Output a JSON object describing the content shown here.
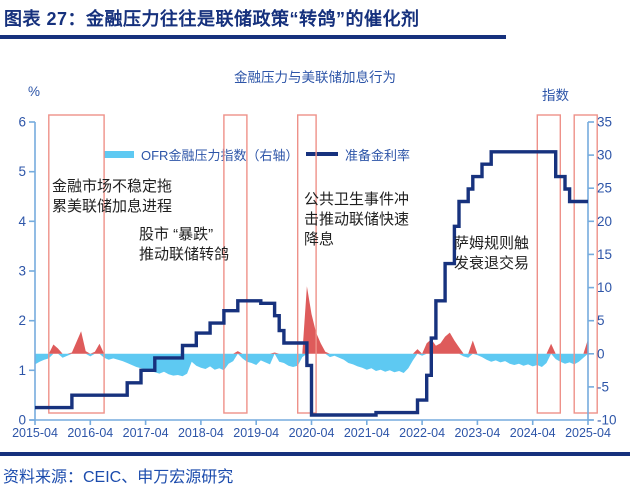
{
  "header": {
    "title": "图表 27：金融压力往往是联储政策“转鸽”的催化剂"
  },
  "footer": {
    "source": "资料来源：CEIC、申万宏源研究"
  },
  "chart_data": {
    "type": "line",
    "title": "金融压力与美联储加息行为",
    "left_axis": {
      "label": "%",
      "min": 0,
      "max": 6,
      "ticks": [
        0,
        1,
        2,
        3,
        4,
        5,
        6
      ]
    },
    "right_axis": {
      "label": "指数",
      "min": -10,
      "max": 35,
      "ticks": [
        -10,
        -5,
        0,
        5,
        10,
        15,
        20,
        25,
        30,
        35
      ]
    },
    "x_axis": {
      "ticks": [
        "2015-04",
        "2016-04",
        "2017-04",
        "2018-04",
        "2019-04",
        "2020-04",
        "2021-04",
        "2022-04",
        "2023-04",
        "2024-04",
        "2025-04"
      ]
    },
    "legend": [
      {
        "label": "OFR金融压力指数（右轴）",
        "color": "#5ec9f2"
      },
      {
        "label": "准备金利率",
        "color": "#17327e"
      }
    ],
    "colors": {
      "axis_line": "#76acde",
      "tick_text": "#2d55a8",
      "event_box_border": "#ee9189",
      "stress_positive": "#de5b5b",
      "stress_negative": "#5ec9f2",
      "rate_line": "#17327e"
    },
    "series": [
      {
        "name": "OFR金融压力指数（右轴）",
        "axis": "right",
        "type": "area",
        "positive_color": "#de5b5b",
        "negative_color": "#5ec9f2",
        "start": "2015-04",
        "interval": "monthly",
        "values": [
          -1.6,
          -1.2,
          -0.9,
          -0.7,
          1.4,
          0.8,
          -0.6,
          -0.3,
          0.2,
          1.8,
          3.4,
          0.4,
          -0.4,
          0.3,
          1.5,
          -0.6,
          -0.9,
          -0.7,
          -0.9,
          -1.1,
          -1.4,
          -1.7,
          -2.0,
          -2.2,
          -2.4,
          -2.6,
          -2.8,
          -3.0,
          -2.7,
          -3.1,
          -3.3,
          -3.2,
          -3.4,
          -3.0,
          -1.2,
          -1.8,
          -2.1,
          -2.3,
          -1.9,
          -2.4,
          -2.2,
          -2.5,
          -1.5,
          -1.1,
          0.4,
          -0.7,
          -1.2,
          -1.4,
          -1.7,
          -1.0,
          -1.3,
          -1.6,
          0.2,
          -1.2,
          -1.4,
          -1.8,
          -2.0,
          -1.8,
          -0.5,
          10.2,
          6.0,
          3.2,
          1.6,
          0.3,
          -0.5,
          -0.3,
          -0.6,
          -0.9,
          -1.4,
          -1.6,
          -1.9,
          -2.1,
          -2.4,
          -2.2,
          -2.6,
          -2.4,
          -2.7,
          -2.5,
          -2.8,
          -2.6,
          -2.9,
          -2.2,
          -1.0,
          0.7,
          -0.3,
          1.6,
          2.2,
          1.2,
          1.6,
          2.6,
          3.2,
          2.0,
          1.0,
          -0.4,
          -0.6,
          2.0,
          -0.2,
          -0.5,
          -0.9,
          -1.2,
          -1.0,
          -1.3,
          -1.1,
          -1.5,
          -1.7,
          -1.5,
          -1.8,
          -1.6,
          -1.9,
          -1.7,
          -2.0,
          -1.4,
          1.5,
          -0.8,
          -1.2,
          -1.5,
          -1.3,
          -1.6,
          -1.2,
          -0.6,
          2.2
        ]
      },
      {
        "name": "准备金利率",
        "axis": "left",
        "type": "step",
        "color": "#17327e",
        "points": [
          [
            "2015-04",
            0.25
          ],
          [
            "2015-12",
            0.5
          ],
          [
            "2016-12",
            0.75
          ],
          [
            "2017-03",
            1.0
          ],
          [
            "2017-06",
            1.25
          ],
          [
            "2017-12",
            1.5
          ],
          [
            "2018-03",
            1.75
          ],
          [
            "2018-06",
            1.95
          ],
          [
            "2018-09",
            2.2
          ],
          [
            "2018-12",
            2.4
          ],
          [
            "2019-05",
            2.35
          ],
          [
            "2019-08",
            2.1
          ],
          [
            "2019-09",
            1.8
          ],
          [
            "2019-10",
            1.55
          ],
          [
            "2020-03",
            1.1
          ],
          [
            "2020-04",
            0.1
          ],
          [
            "2021-06",
            0.15
          ],
          [
            "2022-03",
            0.4
          ],
          [
            "2022-05",
            0.9
          ],
          [
            "2022-06",
            1.65
          ],
          [
            "2022-07",
            2.4
          ],
          [
            "2022-09",
            3.15
          ],
          [
            "2022-11",
            3.9
          ],
          [
            "2022-12",
            4.4
          ],
          [
            "2023-02",
            4.65
          ],
          [
            "2023-03",
            4.9
          ],
          [
            "2023-05",
            5.15
          ],
          [
            "2023-07",
            5.4
          ],
          [
            "2024-09",
            4.9
          ],
          [
            "2024-11",
            4.65
          ],
          [
            "2024-12",
            4.4
          ]
        ]
      }
    ],
    "event_boxes": [
      {
        "start": "2015-07",
        "end": "2016-07"
      },
      {
        "start": "2018-09",
        "end": "2019-02"
      },
      {
        "start": "2020-01",
        "end": "2020-05"
      },
      {
        "start": "2024-05",
        "end": "2024-10"
      },
      {
        "start": "2025-01",
        "end": "2025-06"
      }
    ],
    "annotations": [
      {
        "lines": [
          "金融市场不稳定拖",
          "累美联储加息进程"
        ]
      },
      {
        "lines": [
          "股市 “暴跌”",
          "推动联储转鸽"
        ]
      },
      {
        "lines": [
          "公共卫生事件冲",
          "击推动联储快速",
          "降息"
        ]
      },
      {
        "lines": [
          "萨姆规则触",
          "发衰退交易"
        ]
      }
    ]
  }
}
